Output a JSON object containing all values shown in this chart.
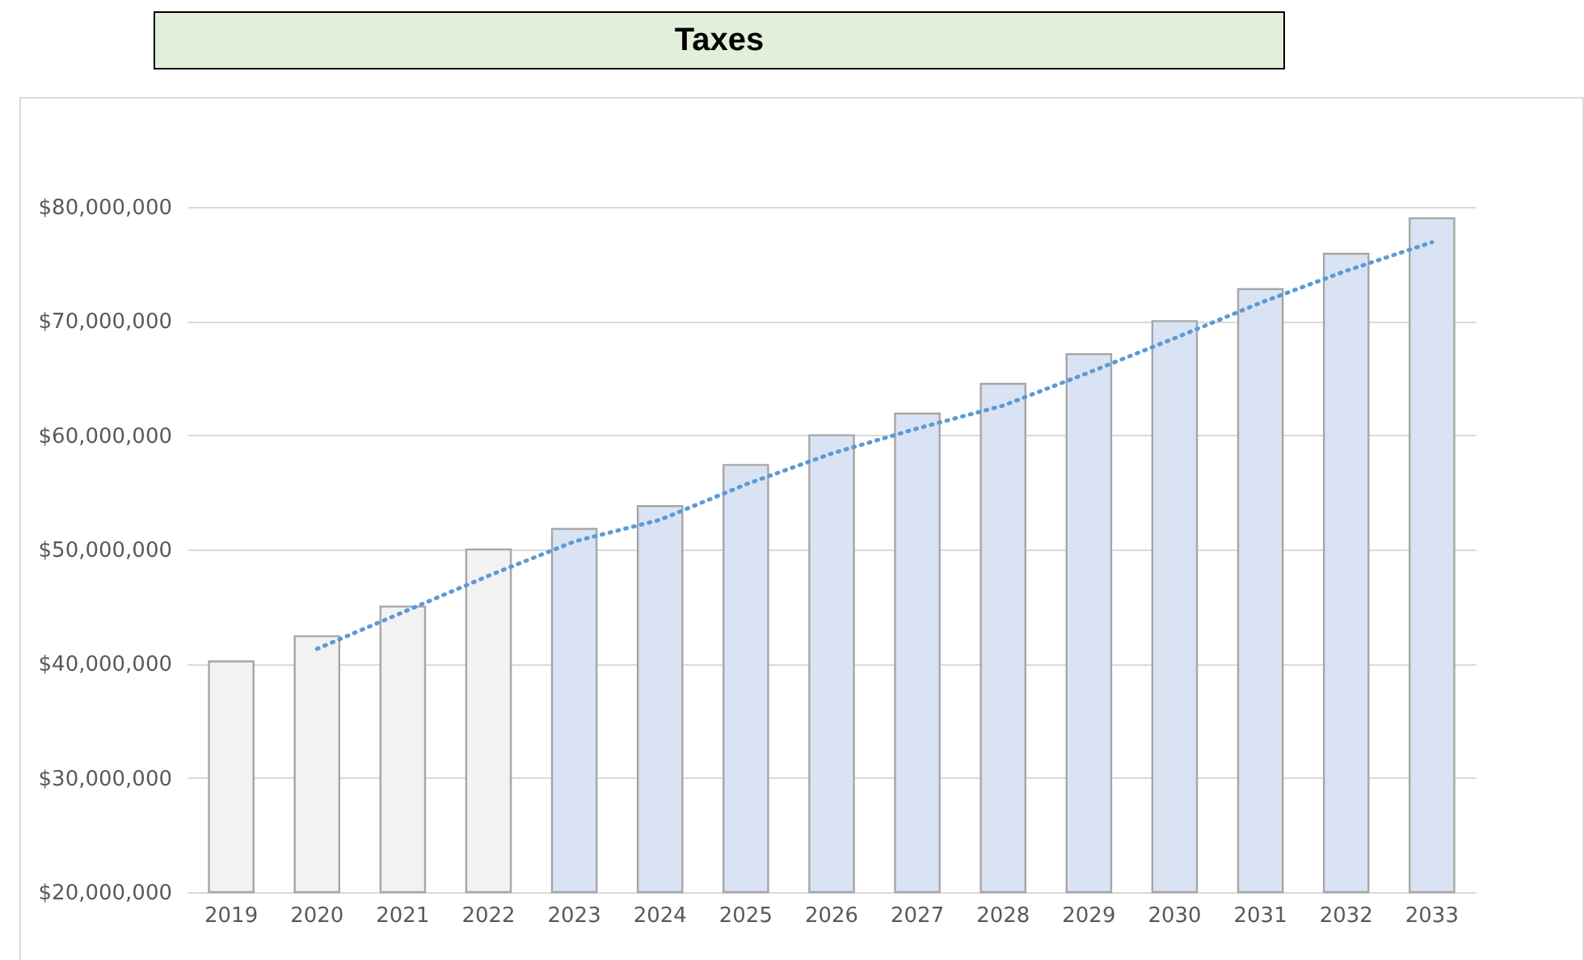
{
  "chart_data": {
    "type": "bar",
    "title": "Taxes",
    "categories": [
      "2019",
      "2020",
      "2021",
      "2022",
      "2023",
      "2024",
      "2025",
      "2026",
      "2027",
      "2028",
      "2029",
      "2030",
      "2031",
      "2032",
      "2033"
    ],
    "series": [
      {
        "values": [
          40200000,
          42400000,
          45000000,
          50000000,
          51800000,
          53800000,
          57400000,
          60000000,
          61900000,
          64500000,
          67100000,
          70000000,
          72800000,
          75900000,
          79000000
        ],
        "colors": [
          "#f2f2f2",
          "#f2f2f2",
          "#f2f2f2",
          "#f2f2f2",
          "#dae3f3",
          "#dae3f3",
          "#dae3f3",
          "#dae3f3",
          "#dae3f3",
          "#dae3f3",
          "#dae3f3",
          "#dae3f3",
          "#dae3f3",
          "#dae3f3",
          "#dae3f3"
        ]
      },
      {
        "type": "line",
        "color": "#5b9bd5",
        "line_style": "dotted",
        "values": [
          null,
          41300000,
          44500000,
          47700000,
          50700000,
          52600000,
          55700000,
          58400000,
          60600000,
          62600000,
          65500000,
          68500000,
          71600000,
          74400000,
          76900000
        ]
      }
    ],
    "ylim": [
      20000000,
      80000000
    ],
    "yticks": [
      {
        "value": 20000000,
        "label": "$20,000,000"
      },
      {
        "value": 30000000,
        "label": "$30,000,000"
      },
      {
        "value": 40000000,
        "label": "$40,000,000"
      },
      {
        "value": 50000000,
        "label": "$50,000,000"
      },
      {
        "value": 60000000,
        "label": "$60,000,000"
      },
      {
        "value": 70000000,
        "label": "$70,000,000"
      },
      {
        "value": 80000000,
        "label": "$80,000,000"
      }
    ],
    "grid": "y"
  }
}
